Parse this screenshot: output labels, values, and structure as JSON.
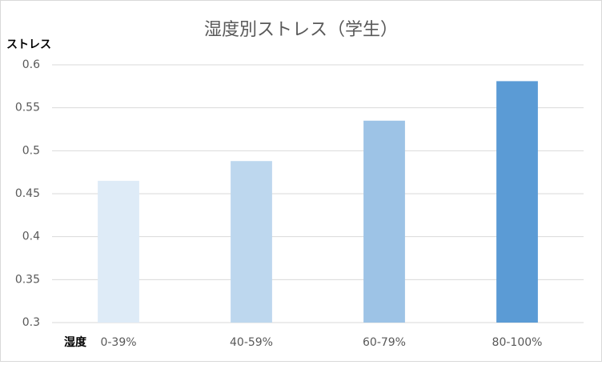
{
  "chart_data": {
    "type": "bar",
    "title": "湿度別ストレス（学生）",
    "y_label": "ストレス",
    "x_label": "湿度",
    "categories": [
      "0-39%",
      "40-59%",
      "60-79%",
      "80-100%"
    ],
    "values": [
      0.465,
      0.488,
      0.535,
      0.581
    ],
    "colors": [
      "#deebf7",
      "#bdd7ee",
      "#9dc3e6",
      "#5b9bd5"
    ],
    "ylim": [
      0.3,
      0.6
    ],
    "yticks": [
      0.3,
      0.35,
      0.4,
      0.45,
      0.5,
      0.55,
      0.6
    ],
    "grid": true
  }
}
